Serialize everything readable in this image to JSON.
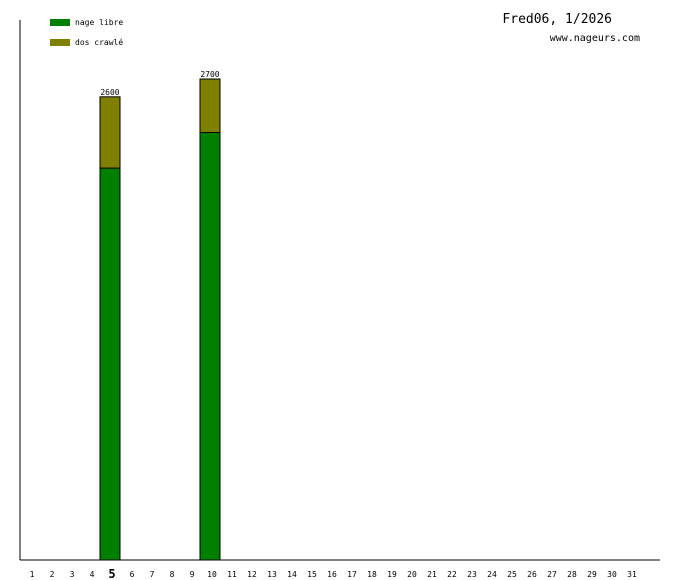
{
  "chart_data": {
    "type": "stacked-bar",
    "title": "Fred06, 1/2026",
    "subtitle": "www.nageurs.com",
    "categories": [
      "1",
      "2",
      "3",
      "4",
      "5",
      "6",
      "7",
      "8",
      "9",
      "10",
      "11",
      "12",
      "13",
      "14",
      "15",
      "16",
      "17",
      "18",
      "19",
      "20",
      "21",
      "22",
      "23",
      "24",
      "25",
      "26",
      "27",
      "28",
      "29",
      "30",
      "31"
    ],
    "highlighted_category": 4,
    "series": [
      {
        "name": "nage libre",
        "color": "#008000",
        "values": [
          null,
          null,
          null,
          null,
          2200,
          null,
          null,
          null,
          null,
          2400,
          null,
          null,
          null,
          null,
          null,
          null,
          null,
          null,
          null,
          null,
          null,
          null,
          null,
          null,
          null,
          null,
          null,
          null,
          null,
          null,
          null
        ]
      },
      {
        "name": "dos crawlé",
        "color": "#808000",
        "values": [
          null,
          null,
          null,
          null,
          400,
          null,
          null,
          null,
          null,
          300,
          null,
          null,
          null,
          null,
          null,
          null,
          null,
          null,
          null,
          null,
          null,
          null,
          null,
          null,
          null,
          null,
          null,
          null,
          null,
          null,
          null
        ]
      }
    ],
    "totals": [
      null,
      null,
      null,
      null,
      2600,
      null,
      null,
      null,
      null,
      2700,
      null,
      null,
      null,
      null,
      null,
      null,
      null,
      null,
      null,
      null,
      null,
      null,
      null,
      null,
      null,
      null,
      null,
      null,
      null,
      null,
      null
    ]
  }
}
